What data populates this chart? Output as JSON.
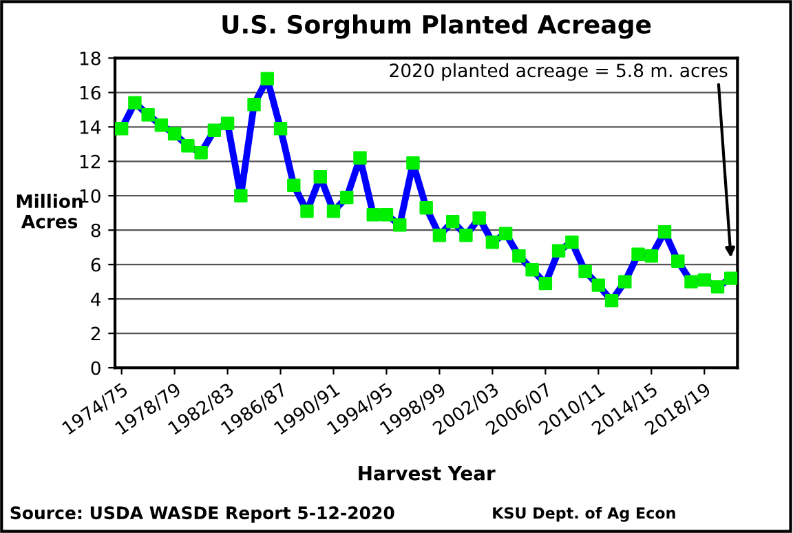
{
  "chart_data": {
    "type": "line",
    "title": "U.S. Sorghum Planted Acreage",
    "xlabel": "Harvest Year",
    "ylabel": "Million\nAcres",
    "categories": [
      "1974/75",
      null,
      null,
      null,
      "1978/79",
      null,
      null,
      null,
      "1982/83",
      null,
      null,
      null,
      "1986/87",
      null,
      null,
      null,
      "1990/91",
      null,
      null,
      null,
      "1994/95",
      null,
      null,
      null,
      "1998/99",
      null,
      null,
      null,
      "2002/03",
      null,
      null,
      null,
      "2006/07",
      null,
      null,
      null,
      "2010/11",
      null,
      null,
      null,
      "2014/15",
      null,
      null,
      null,
      "2018/19",
      null,
      null
    ],
    "series": [
      {
        "color": "#0000ff",
        "colors": [
          "#00ee00",
          "#00ee00",
          "#00ee00",
          "#00ee00",
          "#00ee00",
          "#00ee00",
          "#00ee00",
          "#00ee00",
          "#00ee00",
          "#00ee00",
          "#00ee00",
          "#00ee00",
          "#00ee00",
          "#00ee00",
          "#00ee00",
          "#00ee00",
          "#00ee00",
          "#00ee00",
          "#00ee00",
          "#00ee00",
          "#00ee00",
          "#00ee00",
          "#00ee00",
          "#00ee00",
          "#00ee00",
          "#00ee00",
          "#00ee00",
          "#00ee00",
          "#00ee00",
          "#00ee00",
          "#00ee00",
          "#00ee00",
          "#00ee00",
          "#00ee00",
          "#00ee00",
          "#00ee00",
          "#00ee00",
          "#00ee00",
          "#00ee00",
          "#00ee00",
          "#00ee00",
          "#00ee00",
          "#00ee00",
          "#00ee00",
          "#00ee00",
          "#00ee00",
          "#00ee00"
        ],
        "values": [
          13.9,
          15.4,
          14.7,
          14.1,
          13.6,
          12.9,
          12.5,
          13.8,
          14.2,
          10.0,
          15.3,
          16.8,
          13.9,
          10.6,
          9.1,
          11.1,
          9.1,
          9.9,
          12.2,
          8.9,
          8.9,
          8.3,
          11.9,
          9.3,
          7.7,
          8.5,
          7.7,
          8.7,
          7.3,
          7.8,
          6.5,
          5.7,
          4.9,
          6.8,
          7.3,
          5.6,
          4.8,
          3.9,
          5.0,
          6.6,
          6.5,
          7.9,
          6.2,
          5.0,
          5.1,
          4.7,
          5.2
        ]
      }
    ],
    "marker": "square",
    "line_style": "solid",
    "grid": "y",
    "ylim": [
      0,
      18
    ],
    "yticks": [
      0,
      2,
      4,
      6,
      8,
      10,
      12,
      14,
      16,
      18
    ],
    "annotations": [
      "2020 planted acreage = 5.8 m. acres",
      "Source: USDA WASDE Report 5-12-2020",
      "KSU Dept. of Ag Econ"
    ]
  }
}
